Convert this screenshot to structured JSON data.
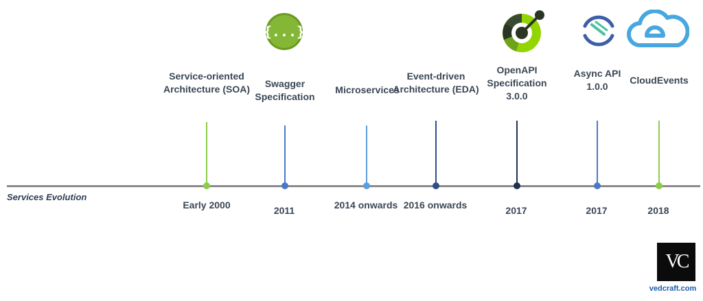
{
  "timeline": {
    "title": "Services Evolution",
    "milestones": [
      {
        "label": "Service-oriented Architecture (SOA)",
        "year": "Early 2000",
        "color": "#8ccc4a"
      },
      {
        "label": "Swagger Specification",
        "year": "2011",
        "color": "#4a78c8"
      },
      {
        "label": "Microservices",
        "year": "2014 onwards",
        "color": "#5b9de0"
      },
      {
        "label": "Event-driven Architecture (EDA)",
        "year": "2016 onwards",
        "color": "#2e4e8a"
      },
      {
        "label": "OpenAPI Specification 3.0.0",
        "year": "2017",
        "color": "#1f3050"
      },
      {
        "label": "Async API 1.0.0",
        "year": "2017",
        "color": "#4a78c8"
      },
      {
        "label": "CloudEvents",
        "year": "2018",
        "color": "#8ccc4a"
      }
    ]
  },
  "logos": {
    "swagger": {
      "icon": "swagger-icon",
      "text": "{...}"
    },
    "openapi": {
      "icon": "openapi-icon"
    },
    "asyncapi": {
      "icon": "asyncapi-icon"
    },
    "cloudevents": {
      "icon": "cloudevents-icon"
    }
  },
  "branding": {
    "monogram": "VC",
    "site": "vedcraft.com"
  }
}
